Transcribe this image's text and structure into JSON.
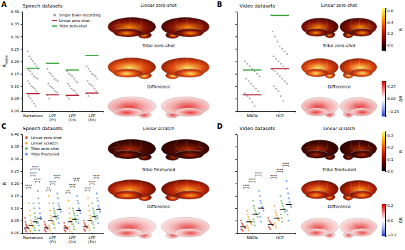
{
  "chart_data": [
    {
      "type": "strip",
      "panel": "A",
      "title": "Speech datasets",
      "ylabel": "R",
      "ylabel_subscript": "noise",
      "categories": [
        "Narratives",
        "LPP (Fr)",
        "LPP (Cn)",
        "LPP (En)"
      ],
      "ylim": [
        0,
        0.4
      ],
      "yticks": [
        {
          "value": 0,
          "label": "0.00"
        },
        0.05,
        {
          "value": 0.1,
          "label": "0.10"
        },
        0.15,
        {
          "value": 0.2,
          "label": "0.20"
        },
        0.25,
        {
          "value": 0.3,
          "label": "0.30"
        },
        0.35,
        {
          "value": 0.4,
          "label": "0.40"
        }
      ],
      "legend": "upper right",
      "series": [
        {
          "name": "Single brain recording",
          "color": "#9a9a9a",
          "marker": "circle",
          "values": [
            [
              0.24,
              0.22,
              0.21,
              0.2,
              0.19,
              0.18,
              0.17,
              0.165,
              0.16,
              0.15,
              0.14,
              0.135,
              0.13,
              0.12,
              0.11,
              0.1,
              0.095,
              0.09,
              0.08,
              0.07,
              0.06,
              0.05,
              0.04,
              0.03,
              0.02
            ],
            [
              0.17,
              0.155,
              0.15,
              0.14,
              0.13,
              0.125,
              0.12,
              0.11,
              0.1,
              0.095,
              0.09,
              0.08,
              0.075,
              0.065,
              0.05
            ],
            [
              0.16,
              0.15,
              0.145,
              0.14,
              0.13,
              0.12,
              0.115,
              0.11,
              0.1,
              0.09,
              0.085,
              0.08,
              0.07,
              0.06,
              0.05
            ],
            [
              0.18,
              0.17,
              0.16,
              0.15,
              0.145,
              0.14,
              0.13,
              0.12,
              0.11,
              0.105,
              0.1,
              0.09,
              0.08,
              0.07,
              0.06
            ]
          ]
        },
        {
          "name": "Linear zero-shot",
          "color": "#b2182b",
          "marker": "line",
          "values": [
            0.07,
            0.065,
            0.063,
            0.072
          ]
        },
        {
          "name": "Tribe zero-shot",
          "color": "#2ca02c",
          "marker": "line",
          "values": [
            0.172,
            0.192,
            0.165,
            0.223
          ]
        }
      ],
      "brain_maps": {
        "titles": [
          "Linear zero-shot",
          "Tribe zero-shot",
          "Difference"
        ]
      }
    },
    {
      "type": "strip",
      "panel": "B",
      "title": "Video datasets",
      "categories": [
        "NNDb",
        "HCP"
      ],
      "ylim": [
        0,
        0.4
      ],
      "yticks": [
        0,
        0.05,
        0.1,
        0.15,
        0.2,
        0.25,
        0.3,
        0.35,
        0.4
      ],
      "tick_labels": "x",
      "series": [
        {
          "name": "Single brain recording",
          "color": "#9a9a9a",
          "marker": "circle",
          "values": [
            [
              0.2,
              0.19,
              0.18,
              0.17,
              0.16,
              0.15,
              0.14,
              0.13,
              0.12,
              0.11,
              0.1,
              0.09,
              0.08,
              0.07,
              0.06,
              0.05,
              0.035,
              0.02
            ],
            [
              0.32,
              0.3,
              0.28,
              0.26,
              0.25,
              0.24,
              0.23,
              0.22,
              0.21,
              0.2,
              0.19,
              0.18,
              0.17,
              0.165,
              0.16,
              0.15,
              0.14,
              0.13,
              0.12,
              0.11,
              0.1,
              0.09,
              0.08,
              0.06,
              0.04
            ]
          ]
        },
        {
          "name": "Linear zero-shot",
          "color": "#b2182b",
          "marker": "line",
          "values": [
            0.065,
            0.17
          ]
        },
        {
          "name": "Tribe zero-shot",
          "color": "#2ca02c",
          "marker": "line",
          "values": [
            0.165,
            0.385
          ]
        }
      ],
      "brain_maps": {
        "titles": [
          "Linear zero-shot",
          "Tribe zero-shot",
          "Difference"
        ]
      },
      "colorbars": [
        {
          "label": "R",
          "lim": [
            -0.1,
            0.65
          ],
          "ticks": [
            0.6,
            0.4,
            0.2,
            {
              "value": 0,
              "label": "0.0"
            }
          ]
        },
        {
          "label": "ΔR",
          "lim": [
            -0.35,
            0.35
          ],
          "ticks": [
            0.25,
            {
              "value": 0,
              "label": "0.00"
            },
            {
              "value": -0.25,
              "label": "−0.25"
            }
          ]
        }
      ]
    },
    {
      "type": "strip",
      "panel": "C",
      "title": "Speech datasets",
      "ylabel": "R",
      "categories": [
        "Narratives",
        "LPP (Fr)",
        "LPP (Cn)",
        "LPP (En)"
      ],
      "ylim": [
        0,
        0.4
      ],
      "yticks": [
        {
          "value": 0,
          "label": "0.00"
        },
        0.05,
        {
          "value": 0.1,
          "label": "0.10"
        },
        0.15,
        {
          "value": 0.2,
          "label": "0.20"
        },
        0.25,
        {
          "value": 0.3,
          "label": "0.30"
        },
        0.35,
        {
          "value": 0.4,
          "label": "0.40"
        }
      ],
      "legend": "upper left",
      "series": [
        {
          "name": "Linear zero-shot",
          "color": "#d9534f",
          "marker": "circle",
          "values": [
            [
              0.06,
              0.045,
              0.035,
              0.03,
              0.025,
              0.02,
              0.018,
              0.015,
              0.01,
              0.005
            ],
            [
              0.045,
              0.035,
              0.03,
              0.025,
              0.022,
              0.02,
              0.015,
              0.012,
              0.01,
              0.005
            ],
            [
              0.04,
              0.03,
              0.028,
              0.025,
              0.02,
              0.018,
              0.015,
              0.012,
              0.01,
              0.005
            ],
            [
              0.05,
              0.04,
              0.035,
              0.03,
              0.027,
              0.025,
              0.02,
              0.015,
              0.01,
              0.008
            ]
          ],
          "means": [
            0.02,
            0.02,
            0.02,
            0.025
          ]
        },
        {
          "name": "Linear scratch",
          "color": "#f0a830",
          "marker": "circle",
          "values": [
            [
              0.12,
              0.09,
              0.07,
              0.05,
              0.04,
              0.03,
              0.025,
              0.02,
              0.01,
              0.005
            ],
            [
              0.15,
              0.12,
              0.09,
              0.07,
              0.06,
              0.05,
              0.04,
              0.03,
              0.02,
              0.01
            ],
            [
              0.13,
              0.1,
              0.08,
              0.06,
              0.05,
              0.045,
              0.035,
              0.025,
              0.015,
              0.005
            ],
            [
              0.14,
              0.11,
              0.09,
              0.07,
              0.06,
              0.05,
              0.04,
              0.03,
              0.02,
              0.01
            ]
          ],
          "means": [
            0.03,
            0.05,
            0.045,
            0.05
          ]
        },
        {
          "name": "Tribe zero-shot",
          "color": "#5cb85c",
          "marker": "circle",
          "values": [
            [
              0.12,
              0.1,
              0.08,
              0.065,
              0.055,
              0.045,
              0.04,
              0.03,
              0.02,
              0.01
            ],
            [
              0.12,
              0.1,
              0.09,
              0.08,
              0.07,
              0.065,
              0.055,
              0.045,
              0.035,
              0.02
            ],
            [
              0.1,
              0.09,
              0.08,
              0.07,
              0.06,
              0.055,
              0.045,
              0.035,
              0.025,
              0.015
            ],
            [
              0.12,
              0.1,
              0.09,
              0.08,
              0.07,
              0.065,
              0.055,
              0.045,
              0.035,
              0.02
            ]
          ],
          "means": [
            0.045,
            0.065,
            0.055,
            0.065
          ]
        },
        {
          "name": "Tribe finetuned",
          "color": "#5b8def",
          "marker": "circle",
          "values": [
            [
              0.17,
              0.14,
              0.12,
              0.1,
              0.08,
              0.065,
              0.055,
              0.04,
              0.03,
              0.01
            ],
            [
              0.16,
              0.14,
              0.12,
              0.11,
              0.1,
              0.095,
              0.085,
              0.07,
              0.06,
              0.04
            ],
            [
              0.15,
              0.13,
              0.12,
              0.1,
              0.095,
              0.09,
              0.08,
              0.07,
              0.055,
              0.04
            ],
            [
              0.16,
              0.14,
              0.13,
              0.11,
              0.1,
              0.095,
              0.085,
              0.07,
              0.06,
              0.04
            ]
          ],
          "means": [
            0.06,
            0.095,
            0.09,
            0.095
          ]
        }
      ],
      "comparisons": [
        {
          "category": 0,
          "pair": [
            0,
            1
          ],
          "text": "****"
        },
        {
          "category": 0,
          "pair": [
            2,
            3
          ],
          "text": "****"
        },
        {
          "category": 0,
          "pair": [
            1,
            2
          ],
          "text": "****"
        },
        {
          "category": 0,
          "pair": [
            1,
            3
          ],
          "text": "****"
        },
        {
          "category": 1,
          "pair": [
            0,
            1
          ],
          "text": "**"
        },
        {
          "category": 1,
          "pair": [
            1,
            2
          ],
          "text": "****"
        },
        {
          "category": 1,
          "pair": [
            2,
            3
          ],
          "text": "****"
        },
        {
          "category": 2,
          "pair": [
            0,
            1
          ],
          "text": "**"
        },
        {
          "category": 2,
          "pair": [
            1,
            2
          ],
          "text": "****"
        },
        {
          "category": 2,
          "pair": [
            2,
            3
          ],
          "text": "****"
        },
        {
          "category": 3,
          "pair": [
            0,
            1
          ],
          "text": "****"
        },
        {
          "category": 3,
          "pair": [
            1,
            2
          ],
          "text": "****"
        },
        {
          "category": 3,
          "pair": [
            2,
            3
          ],
          "text": "****"
        }
      ],
      "brain_maps": {
        "titles": [
          "Linear scratch",
          "Tribe finetuned",
          "Difference"
        ]
      }
    },
    {
      "type": "strip",
      "panel": "D",
      "title": "Video datasets",
      "categories": [
        "NNDb",
        "HCP"
      ],
      "ylim": [
        0,
        0.4
      ],
      "yticks": [
        0,
        0.05,
        0.1,
        0.15,
        0.2,
        0.25,
        0.3,
        0.35,
        0.4
      ],
      "tick_labels": "x",
      "series": [
        {
          "name": "Linear zero-shot",
          "color": "#d9534f",
          "marker": "circle",
          "values": [
            [
              0.05,
              0.04,
              0.035,
              0.03,
              0.025,
              0.022,
              0.02,
              0.015,
              0.012,
              0.008
            ],
            [
              0.06,
              0.05,
              0.045,
              0.04,
              0.035,
              0.033,
              0.03,
              0.025,
              0.02,
              0.015
            ]
          ],
          "means": [
            0.025,
            0.035
          ]
        },
        {
          "name": "Linear scratch",
          "color": "#f0a830",
          "marker": "circle",
          "values": [
            [
              0.09,
              0.075,
              0.065,
              0.055,
              0.045,
              0.04,
              0.035,
              0.03,
              0.02,
              0.01
            ],
            [
              0.11,
              0.09,
              0.08,
              0.07,
              0.06,
              0.055,
              0.05,
              0.04,
              0.03,
              0.02
            ]
          ],
          "means": [
            0.045,
            0.06
          ]
        },
        {
          "name": "Tribe zero-shot",
          "color": "#5cb85c",
          "marker": "circle",
          "values": [
            [
              0.13,
              0.11,
              0.1,
              0.09,
              0.08,
              0.075,
              0.065,
              0.055,
              0.045,
              0.03
            ],
            [
              0.15,
              0.13,
              0.12,
              0.11,
              0.1,
              0.095,
              0.085,
              0.075,
              0.06,
              0.045
            ]
          ],
          "means": [
            0.075,
            0.095
          ]
        },
        {
          "name": "Tribe finetuned",
          "color": "#5b8def",
          "marker": "circle",
          "values": [
            [
              0.17,
              0.15,
              0.13,
              0.12,
              0.105,
              0.1,
              0.09,
              0.08,
              0.065,
              0.045
            ],
            [
              0.21,
              0.18,
              0.16,
              0.14,
              0.125,
              0.115,
              0.105,
              0.09,
              0.075,
              0.05
            ]
          ],
          "means": [
            0.1,
            0.115
          ]
        }
      ],
      "comparisons": [
        {
          "category": 0,
          "pair": [
            0,
            1
          ],
          "text": "****"
        },
        {
          "category": 0,
          "pair": [
            1,
            2
          ],
          "text": "****"
        },
        {
          "category": 0,
          "pair": [
            2,
            3
          ],
          "text": "****"
        },
        {
          "category": 1,
          "pair": [
            0,
            1
          ],
          "text": "****"
        },
        {
          "category": 1,
          "pair": [
            1,
            2
          ],
          "text": "****"
        },
        {
          "category": 1,
          "pair": [
            2,
            3
          ],
          "text": "****"
        }
      ],
      "brain_maps": {
        "titles": [
          "Linear scratch",
          "Tribe finetuned",
          "Difference"
        ]
      },
      "colorbars": [
        {
          "label": "R",
          "lim": [
            0,
            0.33
          ],
          "ticks": [
            0.3,
            0.2,
            0.1,
            {
              "value": 0,
              "label": "0.0"
            }
          ]
        },
        {
          "label": "ΔR",
          "lim": [
            -0.22,
            0.22
          ],
          "ticks": [
            0.2,
            {
              "value": 0,
              "label": "0.0"
            },
            {
              "value": -0.2,
              "label": "−0.2"
            }
          ]
        }
      ]
    }
  ]
}
